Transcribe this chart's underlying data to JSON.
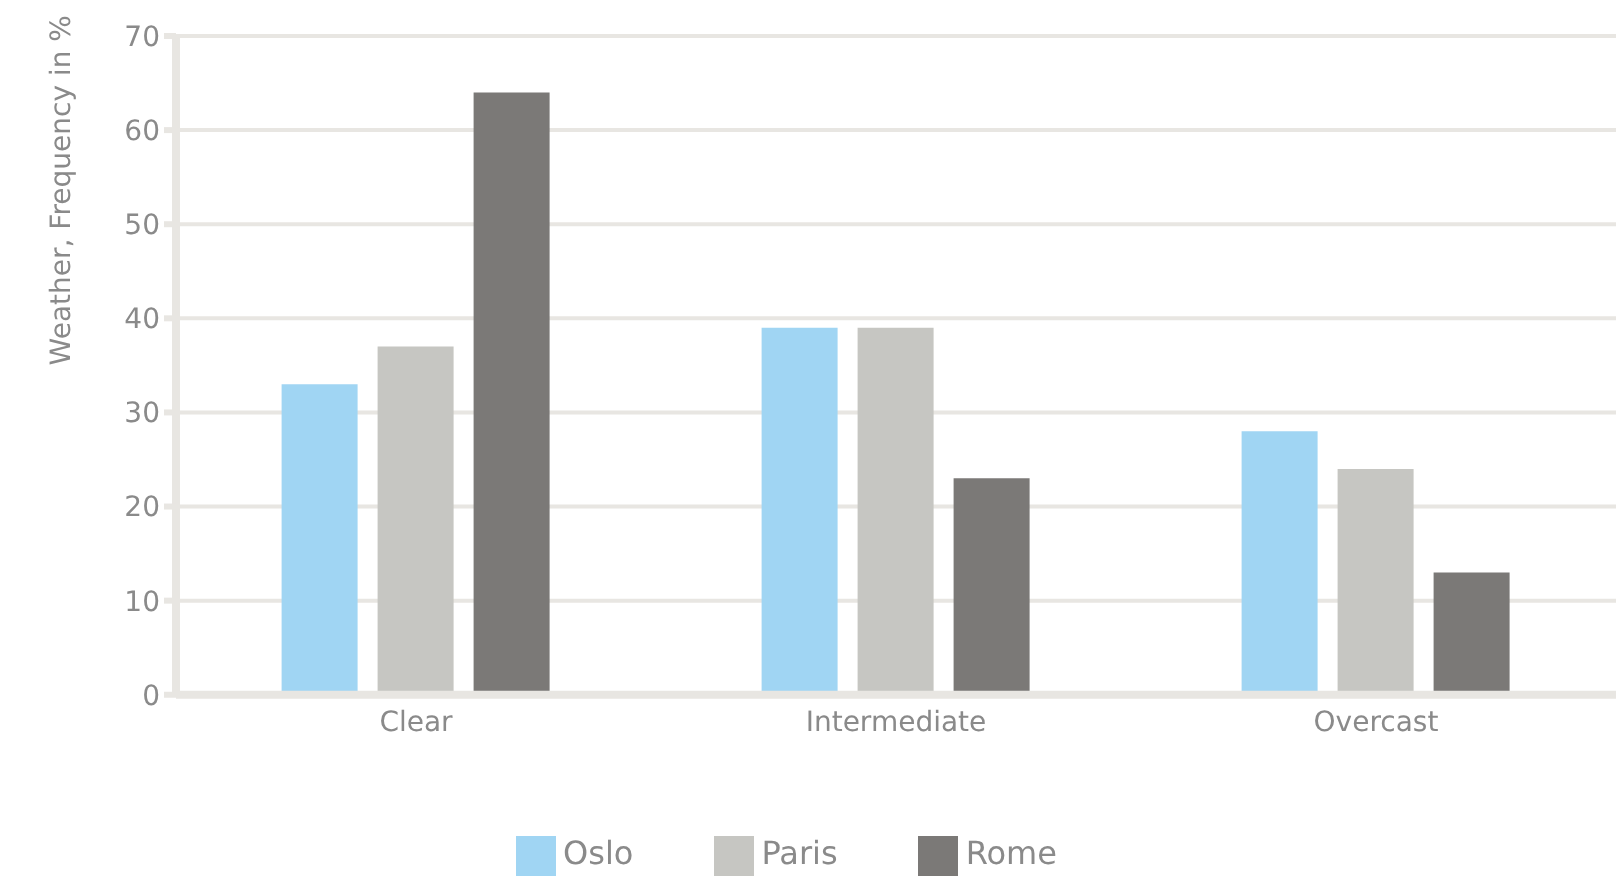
{
  "chart_data": {
    "type": "bar",
    "ylabel": "Weather, Frequency in %",
    "categories": [
      "Clear",
      "Intermediate",
      "Overcast"
    ],
    "series": [
      {
        "name": "Oslo",
        "color": "#a0d5f3",
        "values": [
          33,
          39,
          28
        ]
      },
      {
        "name": "Paris",
        "color": "#c6c6c2",
        "values": [
          37,
          39,
          24
        ]
      },
      {
        "name": "Rome",
        "color": "#7b7977",
        "values": [
          64,
          23,
          13
        ]
      }
    ],
    "ylim": [
      0,
      70
    ],
    "yticks": [
      0,
      10,
      20,
      30,
      40,
      50,
      60,
      70
    ],
    "grid": "y",
    "legend": "bottom"
  }
}
